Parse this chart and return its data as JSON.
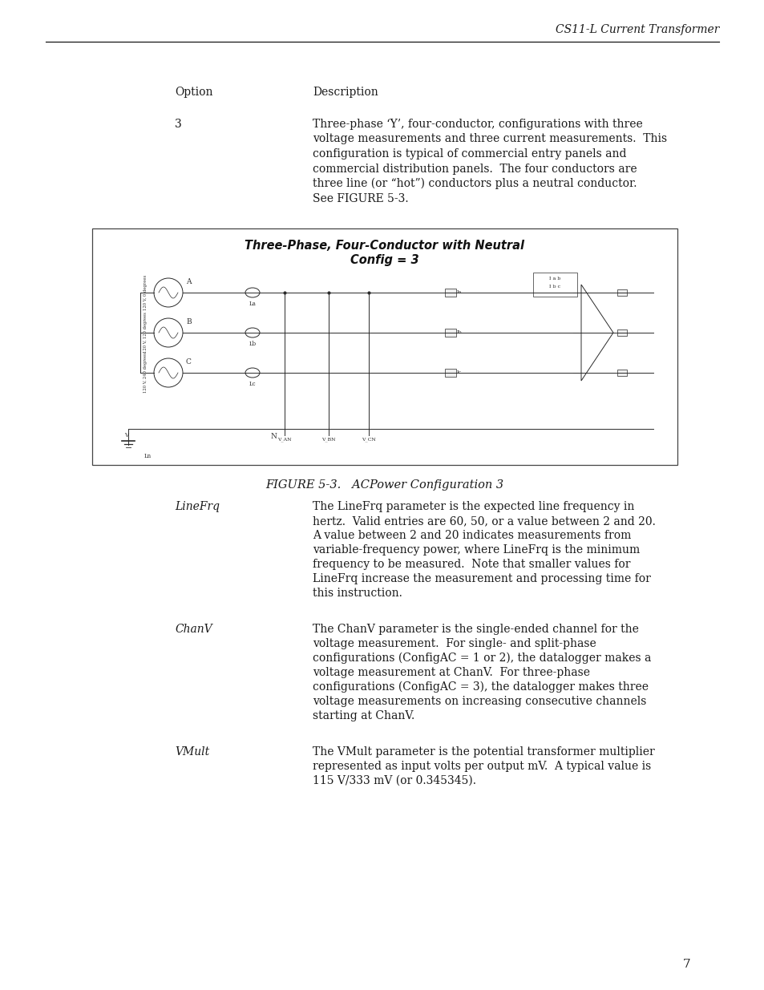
{
  "header_text": "CS11-L Current Transformer",
  "page_number": "7",
  "option_label": "Option",
  "description_label": "Description",
  "option_value": "3",
  "desc_text_lines": [
    "Three-phase ‘Y’, four-conductor, configurations with three",
    "voltage measurements and three current measurements.  This",
    "configuration is typical of commercial entry panels and",
    "commercial distribution panels.  The four conductors are",
    "three line (or “hot”) conductors plus a neutral conductor.",
    "See FIGURE 5-3."
  ],
  "figure_title_line1": "Three-Phase, Four-Conductor with Neutral",
  "figure_title_line2": "Config = 3",
  "figure_caption": "FIGURE 5-3.   ACPower Configuration 3",
  "linefrq_desc": [
    [
      "The ",
      false
    ],
    [
      "LineFrq",
      true
    ],
    [
      " parameter is the expected line frequency in",
      false
    ]
  ],
  "linefrq_lines": [
    "hertz.  Valid entries are 60, 50, or a value between 2 and 20.",
    "A value between 2 and 20 indicates measurements from",
    [
      "variable-frequency power, where ",
      false,
      "LineFrq",
      true,
      " is the minimum",
      false
    ],
    [
      "frequency to be measured.  Note that smaller values for",
      false
    ],
    [
      "LineFrq",
      true,
      " increase the measurement and processing time for",
      false
    ],
    "this instruction."
  ],
  "chanv_lines": [
    [
      "The ",
      false,
      "ChanV",
      true,
      " parameter is the single-ended channel for the",
      false
    ],
    "voltage measurement.  For single- and split-phase",
    "configurations (ConfigAC = 1 or 2), the datalogger makes a",
    [
      "voltage measurement at ",
      false,
      "ChanV",
      true,
      ".  For three-phase",
      false
    ],
    "configurations (ConfigAC = 3), the datalogger makes three",
    "voltage measurements on increasing consecutive channels",
    [
      "starting at ",
      false,
      "ChanV",
      true,
      ".",
      false
    ]
  ],
  "vmult_lines": [
    [
      "The ",
      false,
      "VMult",
      true,
      " parameter is the potential transformer multiplier",
      false
    ],
    "represented as input volts per output mV.  A typical value is",
    "115 V/333 mV (or 0.345345)."
  ],
  "bg_color": "#ffffff",
  "text_color": "#1a1a1a",
  "line_color": "#000000"
}
